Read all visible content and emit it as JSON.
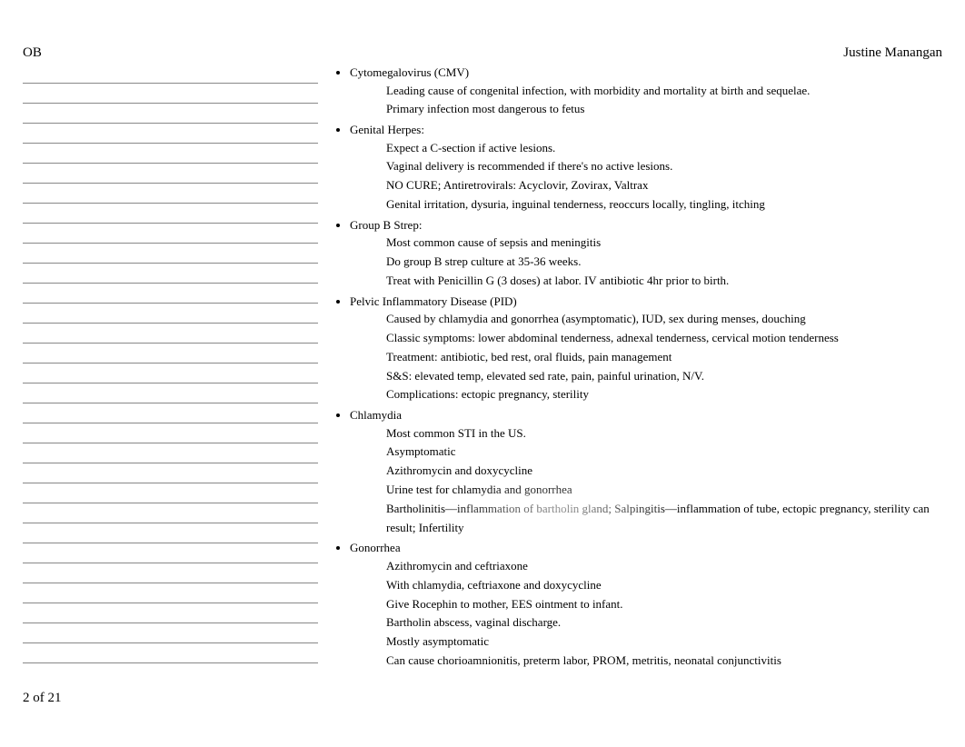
{
  "header": {
    "left": "OB",
    "right": "Justine Manangan"
  },
  "leftColumn": {
    "lineCount": 30,
    "lineColor": "#888888"
  },
  "topics": [
    {
      "title": "Cytomegalovirus (CMV)",
      "points": [
        "Leading cause of congenital infection, with morbidity and mortality at birth and sequelae.",
        "Primary infection most dangerous to fetus"
      ]
    },
    {
      "title": "Genital Herpes:",
      "points": [
        "Expect a C-section if active lesions.",
        "Vaginal delivery is recommended if there's no active lesions.",
        "NO CURE; Antiretrovirals: Acyclovir, Zovirax, Valtrax",
        "Genital irritation, dysuria, inguinal tenderness, reoccurs locally, tingling, itching"
      ]
    },
    {
      "title": "Group B Strep:",
      "points": [
        "Most common cause of sepsis and meningitis",
        "Do group B strep culture at 35-36 weeks.",
        "Treat with Penicillin G (3 doses) at labor. IV antibiotic 4hr prior to birth."
      ]
    },
    {
      "title": "Pelvic Inflammatory Disease (PID)",
      "points": [
        "Caused by chlamydia and gonorrhea (asymptomatic), IUD, sex during menses, douching",
        "Classic symptoms: lower abdominal tenderness, adnexal tenderness, cervical motion tenderness",
        "Treatment: antibiotic, bed rest, oral fluids, pain management",
        "S&S: elevated temp, elevated sed rate, pain, painful urination, N/V.",
        "Complications: ectopic pregnancy, sterility"
      ]
    },
    {
      "title": "Chlamydia",
      "points": [
        "Most common STI in the US.",
        "Asymptomatic",
        "Azithromycin and doxycycline",
        "Urine test for chlamydia and gonorrhea",
        "Bartholinitis—inflammation of bartholin gland; Salpingitis—inflammation of tube, ectopic pregnancy, sterility can result; Infertility"
      ]
    },
    {
      "title": "Gonorrhea",
      "points": [
        "Azithromycin and ceftriaxone",
        "With chlamydia, ceftriaxone and doxycycline",
        "Give Rocephin to mother, EES ointment to infant.",
        "Bartholin abscess, vaginal discharge.",
        "Mostly asymptomatic",
        "Can cause chorioamnionitis, preterm labor, PROM, metritis, neonatal conjunctivitis"
      ]
    }
  ],
  "footer": {
    "page": "2",
    "of": "of",
    "total": "21"
  },
  "colors": {
    "text": "#000000",
    "background": "#ffffff",
    "ruleLine": "#888888"
  },
  "typography": {
    "bodyFont": "Georgia, Times New Roman, serif",
    "headerSize": 15,
    "bodySize": 13
  }
}
